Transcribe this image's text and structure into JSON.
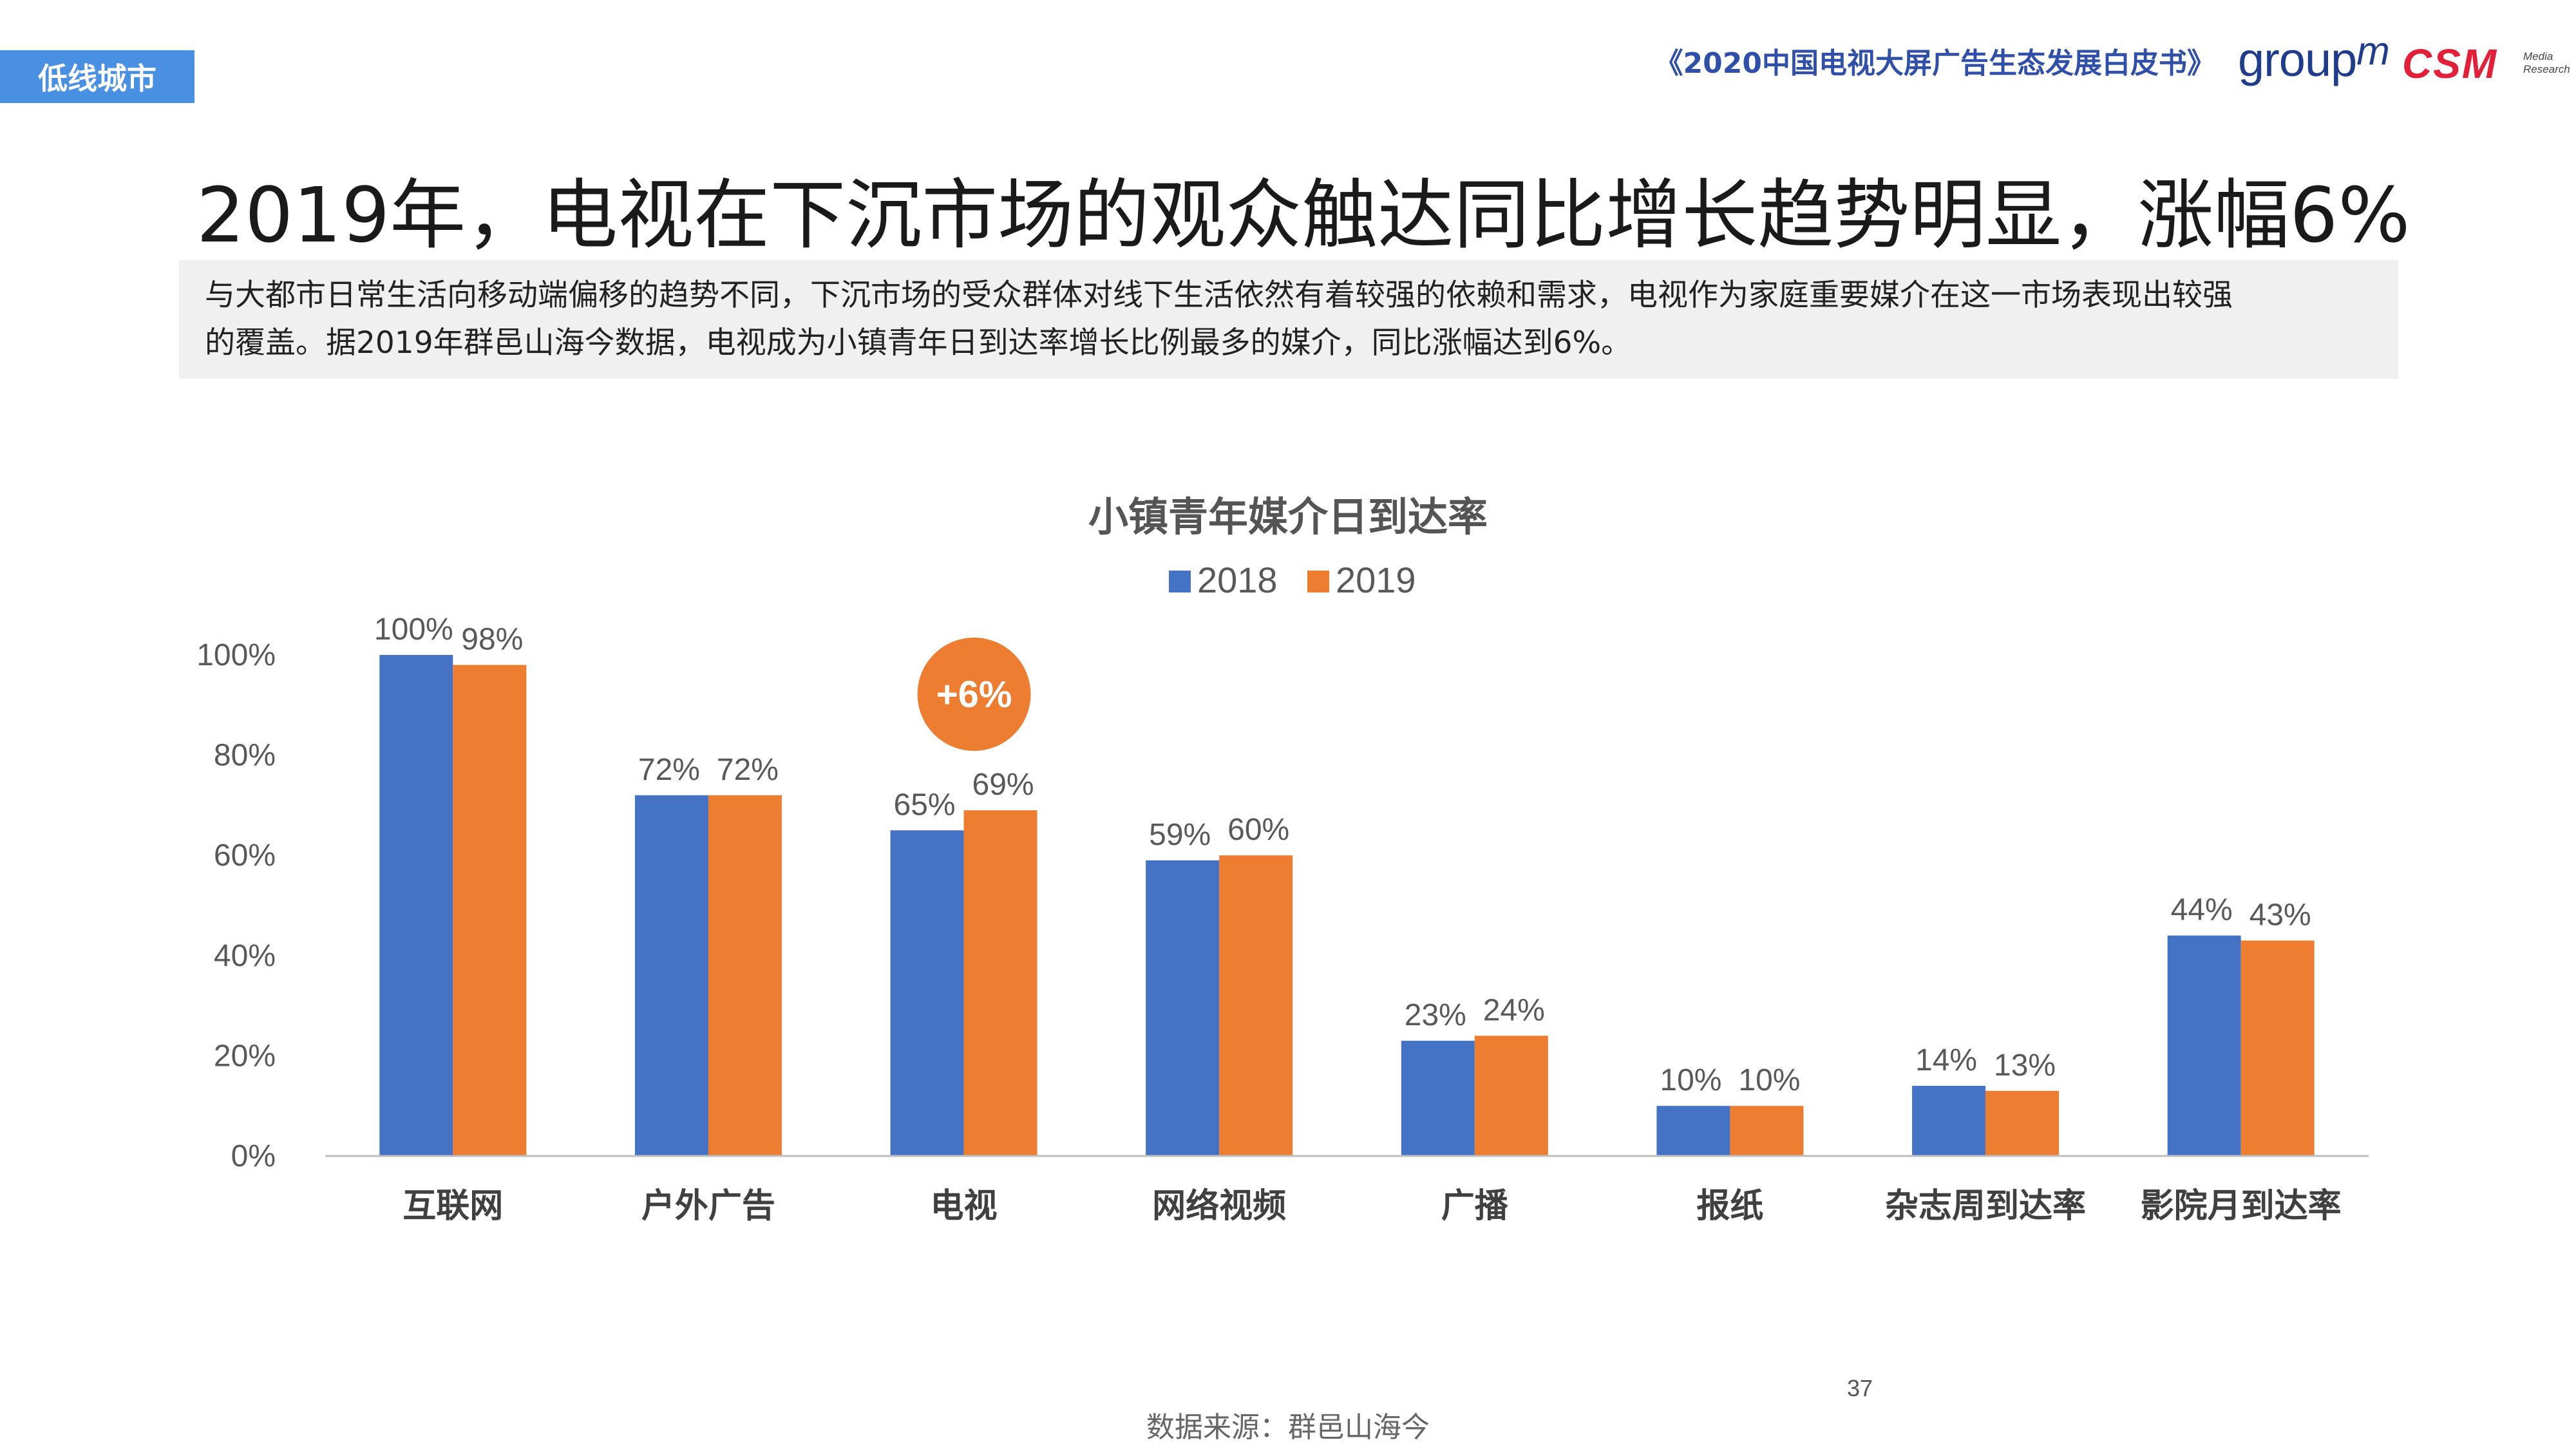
{
  "header": {
    "section_tag": "低线城市",
    "report_title": "《2020中国电视大屏广告生态发展白皮书》",
    "logo_groupm_text": "group",
    "logo_groupm_sup": "m",
    "logo_csm_text": "CSM",
    "logo_csm_sub": "Media Research"
  },
  "headline": "2019年，电视在下沉市场的观众触达同比增长趋势明显，涨幅6%",
  "summary": [
    "与大都市日常生活向移动端偏移的趋势不同，下沉市场的受众群体对线下生活依然有着较强的依赖和需求，电视作为家庭重要媒介在这一市场表现出较强",
    "的覆盖。据2019年群邑山海今数据，电视成为小镇青年日到达率增长比例最多的媒介，同比涨幅达到6%。"
  ],
  "callout": "+6%",
  "colors": {
    "s2018": "#4472c4",
    "s2019": "#ed7d31",
    "callout": "#ed7d31",
    "axis": "#bfbfbf",
    "tick": "#595959",
    "label": "#404040"
  },
  "chart_data": {
    "type": "bar",
    "title": "小镇青年媒介日到达率",
    "categories": [
      "互联网",
      "户外广告",
      "电视",
      "网络视频",
      "广播",
      "报纸",
      "杂志周到达率",
      "影院月到达率"
    ],
    "series": [
      {
        "name": "2018",
        "values": [
          100,
          72,
          65,
          59,
          23,
          10,
          14,
          44
        ],
        "labels": [
          "100%",
          "72%",
          "65%",
          "59%",
          "23%",
          "10%",
          "14%",
          "44%"
        ]
      },
      {
        "name": "2019",
        "values": [
          98,
          72,
          69,
          60,
          24,
          10,
          13,
          43
        ],
        "labels": [
          "98%",
          "72%",
          "69%",
          "60%",
          "24%",
          "10%",
          "13%",
          "43%"
        ]
      }
    ],
    "ylim": [
      0,
      100
    ],
    "yticks": [
      "0%",
      "20%",
      "40%",
      "60%",
      "80%",
      "100%"
    ],
    "legend": "top",
    "grid": false
  },
  "footer": {
    "page_number": "37",
    "source": "数据来源：群邑山海今"
  }
}
